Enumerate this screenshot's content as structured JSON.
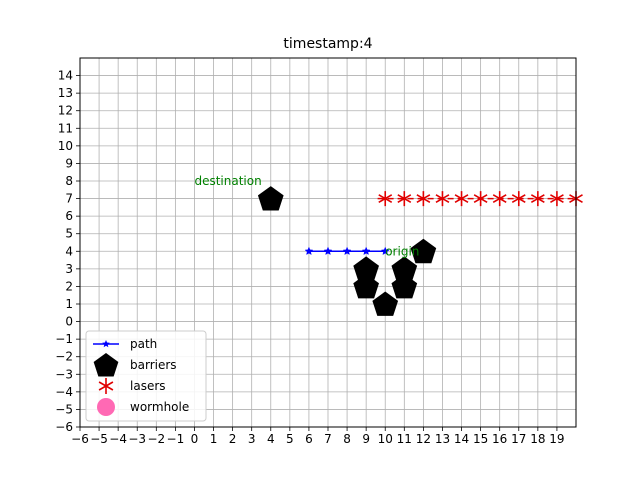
{
  "chart_data": {
    "type": "scatter",
    "title": "timestamp:4",
    "xlabel": "",
    "ylabel": "",
    "xlim": [
      -6,
      20
    ],
    "ylim": [
      -6,
      15
    ],
    "x_ticks": [
      -6,
      -5,
      -4,
      -3,
      -2,
      -1,
      0,
      1,
      2,
      3,
      4,
      5,
      6,
      7,
      8,
      9,
      10,
      11,
      12,
      13,
      14,
      15,
      16,
      17,
      18,
      19
    ],
    "y_ticks": [
      -6,
      -5,
      -4,
      -3,
      -2,
      -1,
      0,
      1,
      2,
      3,
      4,
      5,
      6,
      7,
      8,
      9,
      10,
      11,
      12,
      13,
      14
    ],
    "grid": true,
    "legend_position": "lower-left",
    "series": [
      {
        "name": "path",
        "marker": "star",
        "color": "#0000ff",
        "points": [
          [
            6,
            4
          ],
          [
            7,
            4
          ],
          [
            8,
            4
          ],
          [
            9,
            4
          ],
          [
            10,
            4
          ]
        ]
      },
      {
        "name": "barriers",
        "marker": "pentagon",
        "color": "#000000",
        "points": [
          [
            4,
            7
          ],
          [
            9,
            3
          ],
          [
            9,
            2
          ],
          [
            10,
            1
          ],
          [
            11,
            2
          ],
          [
            11,
            3
          ],
          [
            12,
            4
          ]
        ]
      },
      {
        "name": "lasers",
        "marker": "asterisk",
        "color": "#e00000",
        "points": [
          [
            10,
            7
          ],
          [
            11,
            7
          ],
          [
            12,
            7
          ],
          [
            13,
            7
          ],
          [
            14,
            7
          ],
          [
            15,
            7
          ],
          [
            16,
            7
          ],
          [
            17,
            7
          ],
          [
            18,
            7
          ],
          [
            19,
            7
          ],
          [
            20,
            7
          ]
        ]
      },
      {
        "name": "wormhole",
        "marker": "circle",
        "color": "#ff69b4",
        "points": []
      }
    ],
    "annotations": [
      {
        "text": "destination",
        "x": 0,
        "y": 8
      },
      {
        "text": "origin",
        "x": 10,
        "y": 4
      }
    ]
  }
}
